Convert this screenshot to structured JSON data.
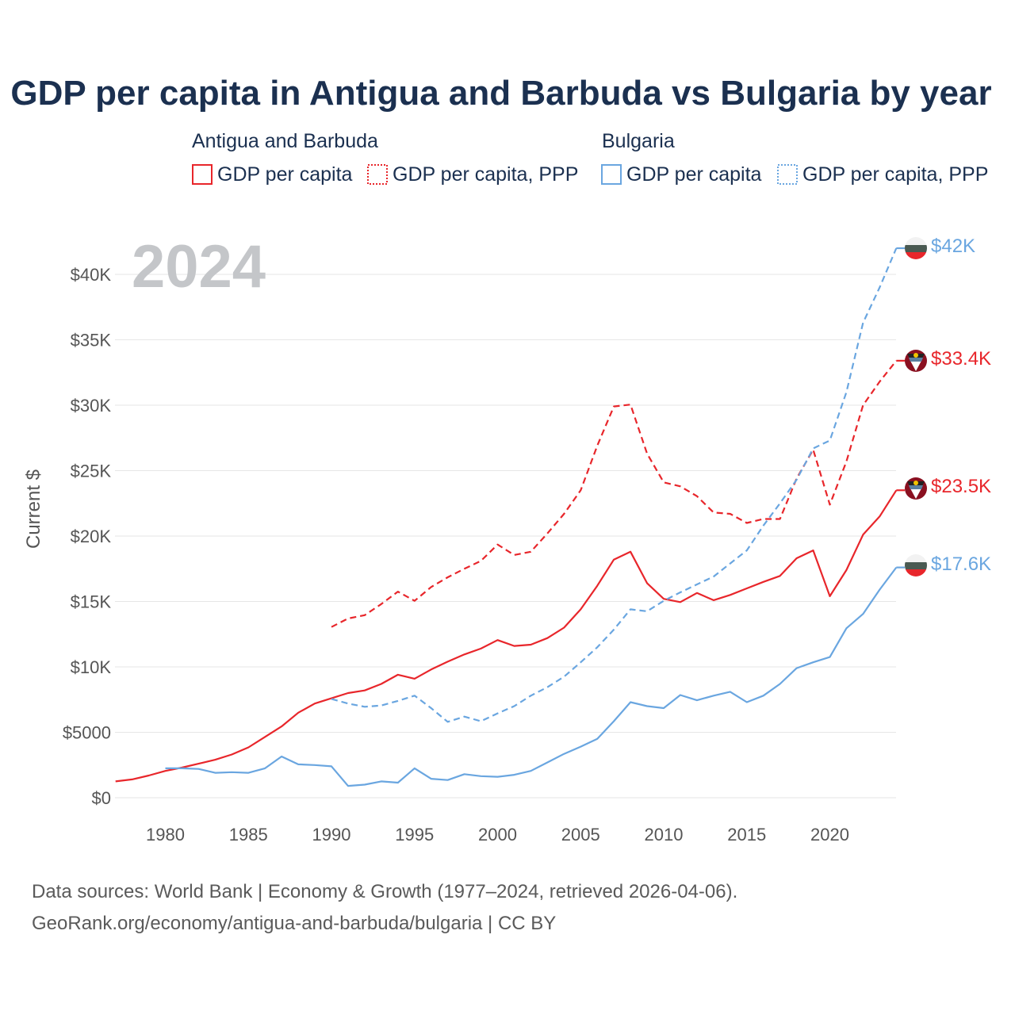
{
  "colors": {
    "antigua": "#e8262b",
    "bulgaria": "#6aa6e0",
    "title": "#1b3050",
    "tick": "#555555",
    "grid": "#e6e6e6",
    "year_watermark": "#c4c6c9"
  },
  "chart_data": {
    "type": "line",
    "title": "GDP per capita in Antigua and Barbuda vs Bulgaria by year",
    "xlabel": "",
    "ylabel": "Current $",
    "year_watermark": "2024",
    "xlim": [
      1977,
      2024
    ],
    "ylim": [
      0,
      42000
    ],
    "x_ticks": [
      1980,
      1985,
      1990,
      1995,
      2000,
      2005,
      2010,
      2015,
      2020
    ],
    "y_ticks": [
      {
        "value": 0,
        "label": "$0"
      },
      {
        "value": 5000,
        "label": "$5000"
      },
      {
        "value": 10000,
        "label": "$10K"
      },
      {
        "value": 15000,
        "label": "$15K"
      },
      {
        "value": 20000,
        "label": "$20K"
      },
      {
        "value": 25000,
        "label": "$25K"
      },
      {
        "value": 30000,
        "label": "$30K"
      },
      {
        "value": 35000,
        "label": "$35K"
      },
      {
        "value": 40000,
        "label": "$40K"
      }
    ],
    "legend": {
      "groups": [
        {
          "name": "Antigua and Barbuda",
          "items": [
            "GDP per capita",
            "GDP per capita, PPP"
          ]
        },
        {
          "name": "Bulgaria",
          "items": [
            "GDP per capita",
            "GDP per capita, PPP"
          ]
        }
      ]
    },
    "series": [
      {
        "id": "ant-gdp",
        "country": "Antigua and Barbuda",
        "name": "GDP per capita",
        "style": "solid",
        "end_label": "$23.5K",
        "x": [
          1977,
          1978,
          1979,
          1980,
          1981,
          1982,
          1983,
          1984,
          1985,
          1986,
          1987,
          1988,
          1989,
          1990,
          1991,
          1992,
          1993,
          1994,
          1995,
          1996,
          1997,
          1998,
          1999,
          2000,
          2001,
          2002,
          2003,
          2004,
          2005,
          2006,
          2007,
          2008,
          2009,
          2010,
          2011,
          2012,
          2013,
          2014,
          2015,
          2016,
          2017,
          2018,
          2019,
          2020,
          2021,
          2022,
          2023,
          2024
        ],
        "values": [
          1250,
          1400,
          1700,
          2050,
          2300,
          2600,
          2900,
          3300,
          3850,
          4650,
          5450,
          6500,
          7200,
          7600,
          8000,
          8200,
          8700,
          9400,
          9100,
          9800,
          10400,
          10950,
          11400,
          12050,
          11600,
          11700,
          12200,
          13000,
          14400,
          16200,
          18200,
          18800,
          16400,
          15200,
          14950,
          15650,
          15100,
          15500,
          16000,
          16500,
          16950,
          18300,
          18900,
          15400,
          17400,
          20100,
          21500,
          23500
        ]
      },
      {
        "id": "ant-ppp",
        "country": "Antigua and Barbuda",
        "name": "GDP per capita, PPP",
        "style": "dashed",
        "end_label": "$33.4K",
        "x": [
          1990,
          1991,
          1992,
          1993,
          1994,
          1995,
          1996,
          1997,
          1998,
          1999,
          2000,
          2001,
          2002,
          2003,
          2004,
          2005,
          2006,
          2007,
          2008,
          2009,
          2010,
          2011,
          2012,
          2013,
          2014,
          2015,
          2016,
          2017,
          2018,
          2019,
          2020,
          2021,
          2022,
          2023,
          2024
        ],
        "values": [
          13050,
          13700,
          13950,
          14800,
          15750,
          15050,
          16100,
          16850,
          17500,
          18100,
          19350,
          18550,
          18800,
          20200,
          21700,
          23500,
          26900,
          29900,
          30050,
          26300,
          24100,
          23800,
          23050,
          21800,
          21700,
          21000,
          21300,
          21300,
          24400,
          26600,
          22400,
          25700,
          30000,
          31800,
          33400
        ]
      },
      {
        "id": "bgr-gdp",
        "country": "Bulgaria",
        "name": "GDP per capita",
        "style": "solid",
        "end_label": "$17.6K",
        "x": [
          1980,
          1981,
          1982,
          1983,
          1984,
          1985,
          1986,
          1987,
          1988,
          1989,
          1990,
          1991,
          1992,
          1993,
          1994,
          1995,
          1996,
          1997,
          1998,
          1999,
          2000,
          2001,
          2002,
          2003,
          2004,
          2005,
          2006,
          2007,
          2008,
          2009,
          2010,
          2011,
          2012,
          2013,
          2014,
          2015,
          2016,
          2017,
          2018,
          2019,
          2020,
          2021,
          2022,
          2023,
          2024
        ],
        "values": [
          2250,
          2250,
          2200,
          1900,
          1950,
          1900,
          2250,
          3150,
          2550,
          2500,
          2400,
          900,
          1000,
          1250,
          1150,
          2250,
          1450,
          1350,
          1800,
          1650,
          1600,
          1750,
          2050,
          2700,
          3350,
          3900,
          4500,
          5850,
          7300,
          7000,
          6850,
          7850,
          7450,
          7800,
          8100,
          7300,
          7800,
          8700,
          9900,
          10350,
          10750,
          12950,
          14050,
          15900,
          17600
        ]
      },
      {
        "id": "bgr-ppp",
        "country": "Bulgaria",
        "name": "GDP per capita, PPP",
        "style": "dotted",
        "end_label": "$42K",
        "x": [
          1990,
          1991,
          1992,
          1993,
          1994,
          1995,
          1996,
          1997,
          1998,
          1999,
          2000,
          2001,
          2002,
          2003,
          2004,
          2005,
          2006,
          2007,
          2008,
          2009,
          2010,
          2011,
          2012,
          2013,
          2014,
          2015,
          2016,
          2017,
          2018,
          2019,
          2020,
          2021,
          2022,
          2023,
          2024
        ],
        "values": [
          7550,
          7200,
          6950,
          7050,
          7400,
          7800,
          6850,
          5800,
          6200,
          5850,
          6450,
          7000,
          7800,
          8450,
          9250,
          10350,
          11500,
          12850,
          14400,
          14250,
          15050,
          15700,
          16300,
          16900,
          17900,
          18900,
          20800,
          22500,
          24300,
          26700,
          27300,
          31000,
          36300,
          39000,
          42000
        ]
      }
    ]
  },
  "source": {
    "line1": "Data sources: World Bank | Economy & Growth (1977–2024, retrieved 2026-04-06).",
    "line2": "GeoRank.org/economy/antigua-and-barbuda/bulgaria | CC BY"
  }
}
